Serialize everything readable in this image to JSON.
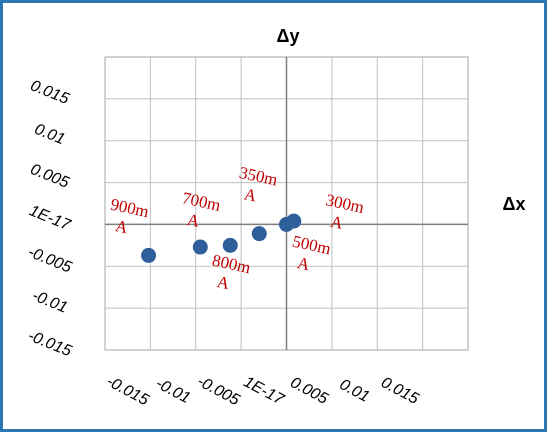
{
  "chart_data": {
    "type": "scatter",
    "title": "",
    "xlabel": "Δx",
    "ylabel": "Δy",
    "xlim": [
      -0.02,
      0.02
    ],
    "ylim": [
      -0.015,
      0.02
    ],
    "x_tick_labels": [
      "-0.015",
      "-0.01",
      "-0.005",
      "1E-17",
      "0.005",
      "0.01",
      "0.015"
    ],
    "y_tick_labels": [
      "0.015",
      "0.01",
      "0.005",
      "1E-17",
      "-0.005",
      "-0.01",
      "-0.015"
    ],
    "x_ticks": [
      -0.015,
      -0.01,
      -0.005,
      0,
      0.005,
      0.01,
      0.015
    ],
    "y_ticks": [
      0.015,
      0.01,
      0.005,
      0,
      -0.005,
      -0.01,
      -0.015
    ],
    "grid": true,
    "marker_color": "#2f5f9a",
    "label_color": "#c00000",
    "frame_color": "#2e75b6",
    "points": [
      {
        "label": "900mA",
        "x": -0.0152,
        "y": -0.0037
      },
      {
        "label": "700mA",
        "x": -0.0095,
        "y": -0.0027
      },
      {
        "label": "800mA",
        "x": -0.0062,
        "y": -0.0025
      },
      {
        "label": "350mA",
        "x": -0.003,
        "y": -0.0011
      },
      {
        "label": "500mA",
        "x": 0.0,
        "y": 0.0
      },
      {
        "label": "300mA",
        "x": 0.0008,
        "y": 0.0004
      }
    ]
  }
}
